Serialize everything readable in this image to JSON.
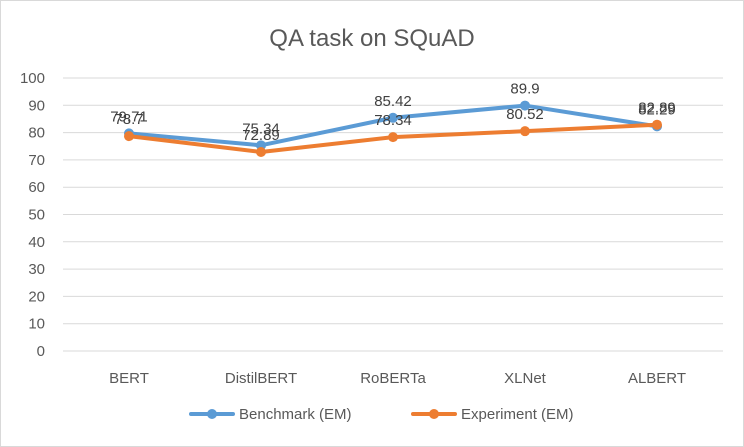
{
  "chart_data": {
    "type": "line",
    "title": "QA task on SQuAD",
    "categories": [
      "BERT",
      "DistilBERT",
      "RoBERTa",
      "XLNet",
      "ALBERT"
    ],
    "series": [
      {
        "name": "Benchmark (EM)",
        "color": "#5b9bd5",
        "values": [
          79.71,
          75.34,
          85.42,
          89.9,
          82.29
        ]
      },
      {
        "name": "Experiment (EM)",
        "color": "#ed7d31",
        "values": [
          78.7,
          72.89,
          78.34,
          80.52,
          82.89
        ]
      }
    ],
    "ylim": [
      0,
      100
    ],
    "yticks": [
      0,
      10,
      20,
      30,
      40,
      50,
      60,
      70,
      80,
      90,
      100
    ],
    "grid": true,
    "legend": "bottom",
    "gridline_color": "#d9d9d9"
  }
}
